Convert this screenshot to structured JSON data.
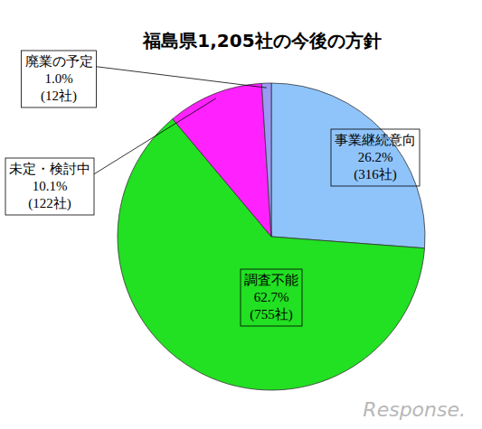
{
  "chart_data": {
    "type": "pie",
    "title": "福島県1,205社の今後の方針",
    "categories": [
      "事業継続意向",
      "調査不能",
      "未定・検討中",
      "廃業の予定"
    ],
    "values": [
      26.2,
      62.7,
      10.1,
      1.0
    ],
    "value_labels": [
      "26.2%",
      "62.7%",
      "10.1%",
      "1.0%"
    ],
    "counts": [
      316,
      755,
      122,
      12
    ],
    "count_labels": [
      "(316社)",
      "(755社)",
      "(122社)",
      "(12社)"
    ],
    "colors": [
      "#8fc4fb",
      "#22e022",
      "#ff22ff",
      "#9a9af4"
    ],
    "data_labels": true,
    "annotations": [
      "Response."
    ]
  }
}
